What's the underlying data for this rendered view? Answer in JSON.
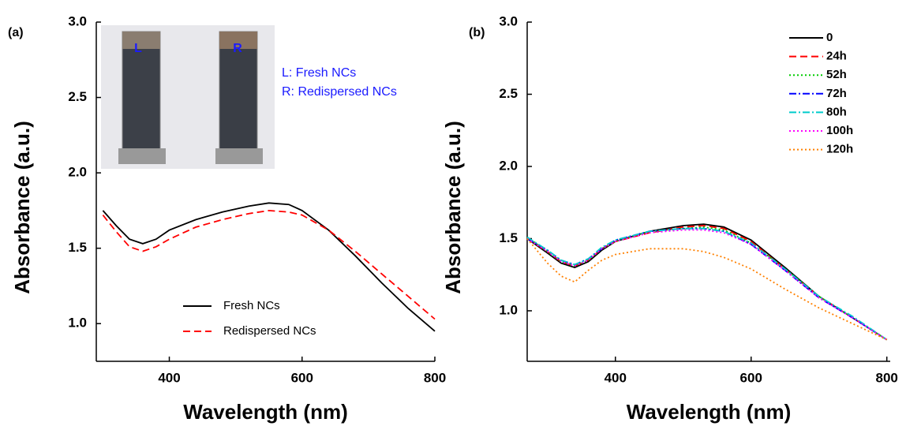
{
  "chart_data": [
    {
      "type": "line",
      "panel_label": "(a)",
      "xlabel": "Wavelength (nm)",
      "ylabel": "Absorbance (a.u.)",
      "xlim": [
        290,
        800
      ],
      "ylim": [
        0.75,
        3.0
      ],
      "xticks": [
        400,
        600,
        800
      ],
      "yticks": [
        {
          "value": 1.0,
          "label": "1.0"
        },
        {
          "value": 1.5,
          "label": "1.5"
        },
        {
          "value": 2.0,
          "label": "2.0"
        },
        {
          "value": 2.5,
          "label": "2.5"
        },
        {
          "value": 3.0,
          "label": "3.0"
        }
      ],
      "legend": "lower center",
      "inset": {
        "left_label": "L",
        "right_label": "R",
        "annotations": [
          "L: Fresh NCs",
          "R: Redispersed NCs"
        ]
      },
      "x": [
        300,
        320,
        340,
        360,
        380,
        400,
        440,
        480,
        520,
        550,
        580,
        600,
        640,
        680,
        720,
        760,
        800
      ],
      "series": [
        {
          "name": "Fresh NCs",
          "color": "#000000",
          "style": "solid",
          "values": [
            1.75,
            1.65,
            1.56,
            1.53,
            1.56,
            1.62,
            1.69,
            1.74,
            1.78,
            1.8,
            1.79,
            1.75,
            1.62,
            1.45,
            1.27,
            1.1,
            0.95
          ]
        },
        {
          "name": "Redispersed NCs",
          "color": "#ff0000",
          "style": "dashed",
          "values": [
            1.72,
            1.61,
            1.51,
            1.48,
            1.51,
            1.56,
            1.64,
            1.69,
            1.73,
            1.75,
            1.74,
            1.72,
            1.62,
            1.48,
            1.33,
            1.18,
            1.03
          ]
        }
      ]
    },
    {
      "type": "line",
      "panel_label": "(b)",
      "xlabel": "Wavelength (nm)",
      "ylabel": "Absorbance (a.u.)",
      "xlim": [
        270,
        805
      ],
      "ylim": [
        0.65,
        3.0
      ],
      "xticks": [
        400,
        600,
        800
      ],
      "yticks": [
        {
          "value": 1.0,
          "label": "1.0"
        },
        {
          "value": 1.5,
          "label": "1.5"
        },
        {
          "value": 2.0,
          "label": "2.0"
        },
        {
          "value": 2.5,
          "label": "2.5"
        },
        {
          "value": 3.0,
          "label": "3.0"
        }
      ],
      "legend": "upper right",
      "x": [
        270,
        300,
        320,
        340,
        360,
        380,
        400,
        450,
        500,
        530,
        560,
        600,
        650,
        700,
        750,
        800
      ],
      "series": [
        {
          "name": "0",
          "color": "#000000",
          "style": "solid",
          "values": [
            1.5,
            1.4,
            1.33,
            1.3,
            1.34,
            1.42,
            1.48,
            1.55,
            1.59,
            1.6,
            1.58,
            1.49,
            1.3,
            1.1,
            0.95,
            0.8
          ]
        },
        {
          "name": "24h",
          "color": "#ff0000",
          "style": "dashed",
          "values": [
            1.5,
            1.41,
            1.34,
            1.31,
            1.35,
            1.43,
            1.48,
            1.54,
            1.58,
            1.59,
            1.57,
            1.48,
            1.29,
            1.1,
            0.95,
            0.8
          ]
        },
        {
          "name": "52h",
          "color": "#00cc00",
          "style": "dotted",
          "values": [
            1.51,
            1.41,
            1.34,
            1.31,
            1.35,
            1.43,
            1.48,
            1.55,
            1.57,
            1.58,
            1.56,
            1.47,
            1.29,
            1.1,
            0.95,
            0.8
          ]
        },
        {
          "name": "72h",
          "color": "#0000ff",
          "style": "dashdot",
          "values": [
            1.5,
            1.42,
            1.35,
            1.32,
            1.36,
            1.43,
            1.49,
            1.55,
            1.57,
            1.57,
            1.55,
            1.46,
            1.28,
            1.09,
            0.95,
            0.8
          ]
        },
        {
          "name": "80h",
          "color": "#00cccc",
          "style": "dashdot",
          "values": [
            1.51,
            1.42,
            1.35,
            1.32,
            1.36,
            1.44,
            1.49,
            1.55,
            1.57,
            1.57,
            1.55,
            1.47,
            1.29,
            1.1,
            0.96,
            0.8
          ]
        },
        {
          "name": "100h",
          "color": "#ff00ff",
          "style": "dotted",
          "values": [
            1.5,
            1.41,
            1.34,
            1.31,
            1.35,
            1.43,
            1.48,
            1.54,
            1.56,
            1.56,
            1.54,
            1.46,
            1.28,
            1.09,
            0.95,
            0.8
          ]
        },
        {
          "name": "120h",
          "color": "#ff8000",
          "style": "dotted",
          "values": [
            1.5,
            1.33,
            1.24,
            1.2,
            1.28,
            1.35,
            1.39,
            1.43,
            1.43,
            1.41,
            1.37,
            1.29,
            1.15,
            1.02,
            0.91,
            0.8
          ]
        }
      ]
    }
  ]
}
